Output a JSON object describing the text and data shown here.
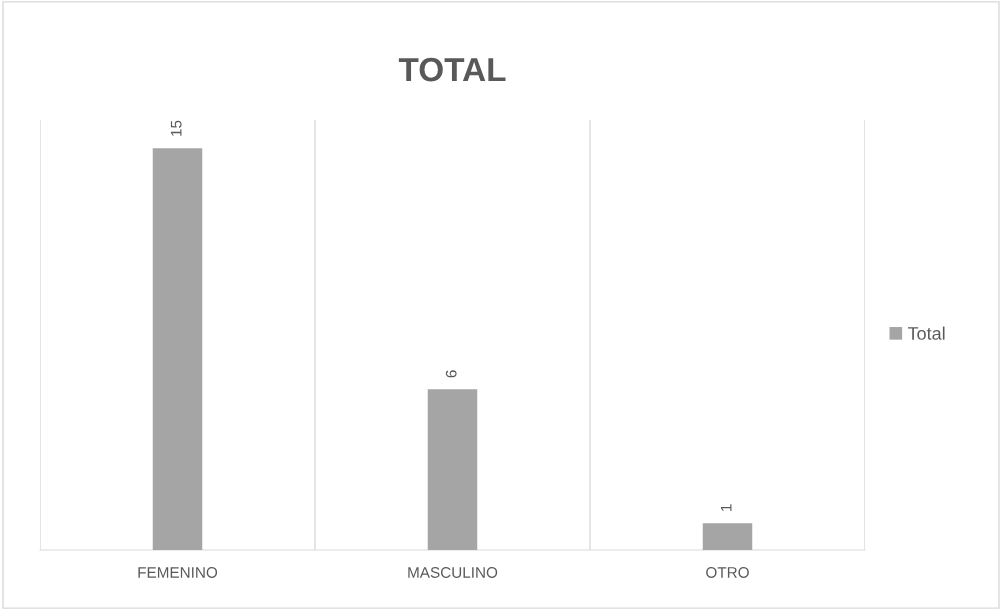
{
  "chart_data": {
    "type": "bar",
    "title": "TOTAL",
    "categories": [
      "FEMENINO",
      "MASCULINO",
      "OTRO"
    ],
    "series": [
      {
        "name": "Total",
        "color": "#a5a5a5",
        "values": [
          15,
          6,
          1
        ]
      }
    ],
    "data_labels": true,
    "grid": "x",
    "legend": "right",
    "tick_labels": "x"
  }
}
